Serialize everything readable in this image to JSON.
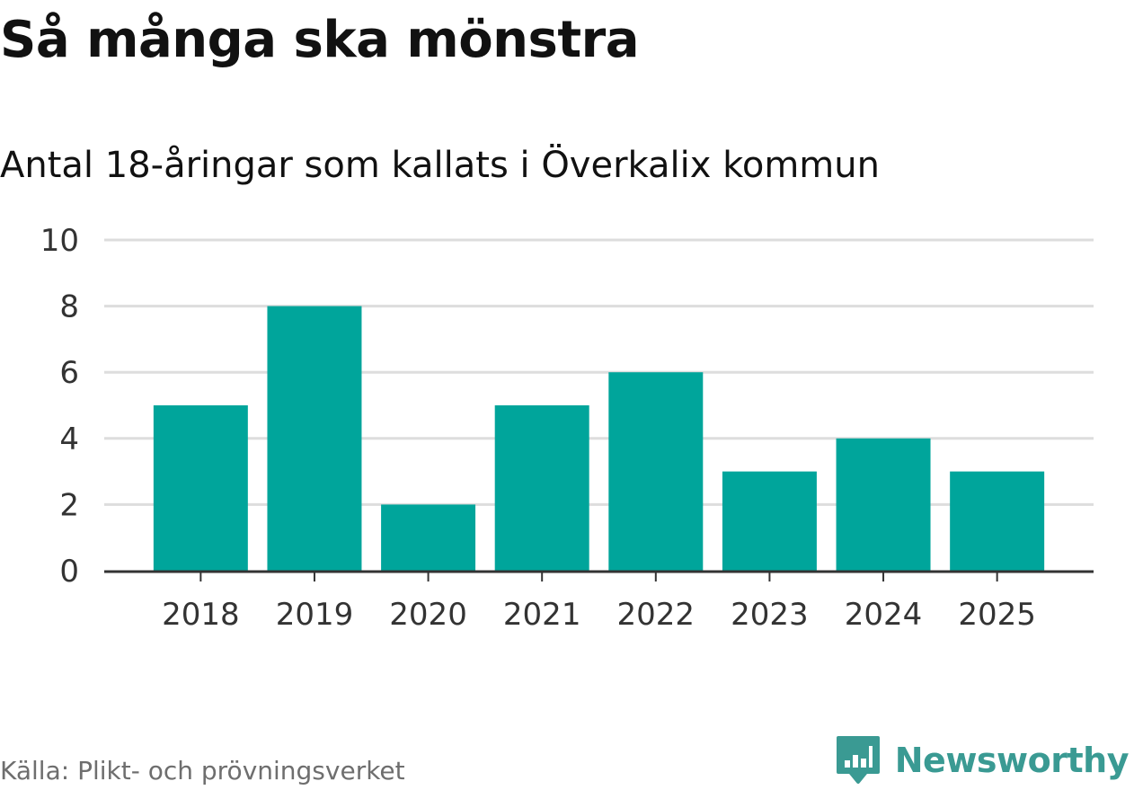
{
  "header": {
    "title": "Så många ska mönstra",
    "subtitle": "Antal 18-åringar som kallats i Överkalix kommun"
  },
  "chart_data": {
    "type": "bar",
    "categories": [
      "2018",
      "2019",
      "2020",
      "2021",
      "2022",
      "2023",
      "2024",
      "2025"
    ],
    "values": [
      5,
      8,
      2,
      5,
      6,
      3,
      4,
      3
    ],
    "title": "Så många ska mönstra",
    "subtitle": "Antal 18-åringar som kallats i Överkalix kommun",
    "xlabel": "",
    "ylabel": "",
    "ylim": [
      0,
      10
    ],
    "yticks": [
      0,
      2,
      4,
      6,
      8,
      10
    ],
    "grid": true,
    "legend": "none",
    "bar_color": "#00a59b"
  },
  "footer": {
    "source": "Källa: Plikt- och prövningsverket",
    "brand": "Newsworthy",
    "brand_color": "#3a9a93",
    "brand_icon": "bar-chart-speech-bubble-icon"
  },
  "colors": {
    "bar": "#00a59b",
    "grid": "#dddddd",
    "axis": "#333333",
    "text": "#111111"
  }
}
